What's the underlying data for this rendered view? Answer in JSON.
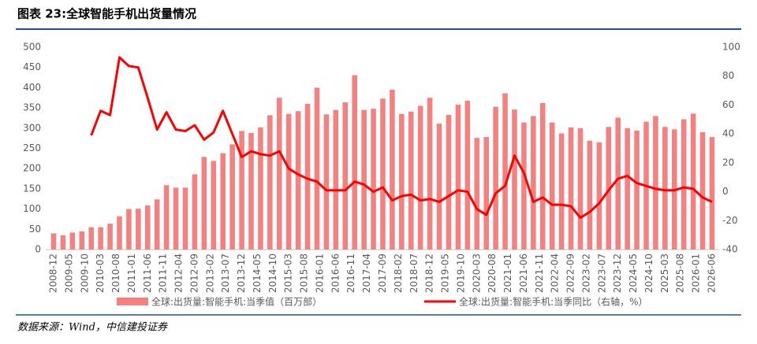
{
  "chart_data": {
    "type": "bar_line",
    "title": "图表 23:全球智能手机出货量情况",
    "source": "数据来源：Wind，中信建投证券",
    "x": [
      "2008-12",
      "2009-03",
      "2009-06",
      "2009-09",
      "2009-12",
      "2010-03",
      "2010-06",
      "2010-09",
      "2010-12",
      "2011-03",
      "2011-06",
      "2011-09",
      "2011-12",
      "2012-03",
      "2012-06",
      "2012-09",
      "2012-12",
      "2013-03",
      "2013-06",
      "2013-09",
      "2013-12",
      "2014-03",
      "2014-06",
      "2014-09",
      "2014-12",
      "2015-03",
      "2015-06",
      "2015-09",
      "2015-12",
      "2016-03",
      "2016-06",
      "2016-09",
      "2016-12",
      "2017-03",
      "2017-06",
      "2017-09",
      "2017-12",
      "2018-03",
      "2018-06",
      "2018-09",
      "2018-12",
      "2019-03",
      "2019-06",
      "2019-09",
      "2019-12",
      "2020-03",
      "2020-06",
      "2020-09",
      "2020-12",
      "2021-03",
      "2021-06",
      "2021-09",
      "2021-12",
      "2022-03",
      "2022-06",
      "2022-09",
      "2022-12",
      "2023-03",
      "2023-06",
      "2023-09",
      "2023-12",
      "2024-03",
      "2024-06",
      "2024-09",
      "2024-12",
      "2025-03",
      "2025-06",
      "2025-09",
      "2025-12",
      "2026-03",
      "2026-06"
    ],
    "xticks": [
      "2008-12",
      "2009-05",
      "2009-10",
      "2010-03",
      "2010-08",
      "2011-01",
      "2011-06",
      "2011-11",
      "2012-04",
      "2012-09",
      "2013-02",
      "2013-07",
      "2013-12",
      "2014-05",
      "2014-10",
      "2015-03",
      "2015-08",
      "2016-01",
      "2016-06",
      "2016-11",
      "2017-04",
      "2017-09",
      "2018-02",
      "2018-07",
      "2018-12",
      "2019-05",
      "2019-10",
      "2020-03",
      "2020-08",
      "2021-01",
      "2021-06",
      "2021-11",
      "2022-04",
      "2022-09",
      "2023-02",
      "2023-07",
      "2023-12",
      "2024-05",
      "2024-10",
      "2025-03",
      "2025-08",
      "2026-01",
      "2026-06"
    ],
    "series": [
      {
        "name": "全球:出货量:智能手机:当季值（百万部）",
        "type": "bar",
        "color": "#f4817f",
        "values": [
          40,
          35,
          42,
          45,
          55,
          55,
          64,
          82,
          100,
          101,
          109,
          124,
          159,
          153,
          153,
          186,
          229,
          219,
          238,
          260,
          293,
          288,
          302,
          332,
          375,
          335,
          342,
          360,
          400,
          334,
          345,
          364,
          431,
          345,
          348,
          373,
          395,
          335,
          341,
          355,
          375,
          311,
          333,
          358,
          368,
          276,
          278,
          353,
          386,
          346,
          314,
          330,
          362,
          314,
          287,
          302,
          300,
          269,
          265,
          303,
          326,
          300,
          294,
          316,
          330,
          303,
          297,
          322,
          336,
          290,
          278
        ]
      },
      {
        "name": "全球:出货量:智能手机:当季同比（右轴，%）",
        "type": "line",
        "axis": "y2",
        "color": "#ff0000",
        "values": [
          null,
          null,
          null,
          null,
          39,
          56,
          53,
          93,
          87,
          86,
          65,
          43,
          55,
          43,
          42,
          46,
          36,
          41,
          56,
          40,
          24,
          28,
          26,
          25,
          28,
          16,
          12,
          9,
          7,
          1,
          1,
          1,
          7,
          5,
          0,
          3,
          -6,
          -3,
          -2,
          -6,
          -5,
          -7,
          -3,
          1,
          0,
          -12,
          -16,
          -1,
          4,
          25,
          13,
          -7,
          -4,
          -9,
          -9,
          -10,
          -18,
          -14,
          -8,
          1,
          9,
          11,
          6,
          4,
          2,
          1,
          1,
          3,
          2,
          -4,
          -7
        ]
      }
    ],
    "ylim": [
      0,
      500
    ],
    "yticks": [
      0,
      50,
      100,
      150,
      200,
      250,
      300,
      350,
      400,
      450,
      500
    ],
    "y2lim": [
      -40,
      100
    ],
    "y2ticks": [
      -40,
      -20,
      0,
      20,
      40,
      60,
      80,
      100
    ]
  }
}
